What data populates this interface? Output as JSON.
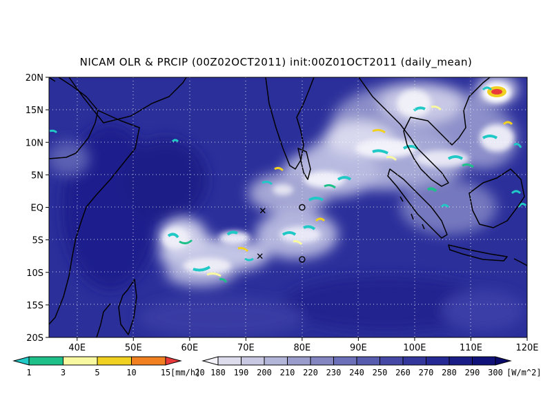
{
  "title": "NICAM OLR & PRCIP (00Z02OCT2011) init:00Z01OCT2011 (daily_mean)",
  "map": {
    "lat_ticks": [
      "20N",
      "15N",
      "10N",
      "5N",
      "EQ",
      "5S",
      "10S",
      "15S",
      "20S"
    ],
    "lon_ticks": [
      "40E",
      "50E",
      "60E",
      "70E",
      "80E",
      "90E",
      "100E",
      "110E",
      "120E"
    ],
    "lon_range": [
      35,
      120
    ],
    "lat_range": [
      -20,
      20
    ],
    "gridlines": true,
    "background_olr_color": "#2b2f9a",
    "markers": [
      {
        "symbol": "x",
        "lon": 73.0,
        "lat": -0.5
      },
      {
        "symbol": "x",
        "lon": 72.5,
        "lat": -7.5
      },
      {
        "symbol": "o",
        "lon": 80.0,
        "lat": 0.0
      },
      {
        "symbol": "o",
        "lon": 80.0,
        "lat": -8.0
      }
    ]
  },
  "precip_bar": {
    "labels": [
      "1",
      "3",
      "5",
      "10",
      "15",
      "20"
    ],
    "unit": "[mm/h]",
    "colors": [
      "#20c9c5",
      "#1ec08a",
      "#f8f8a0",
      "#f0d020",
      "#f08020",
      "#e83a3a"
    ]
  },
  "olr_bar": {
    "labels": [
      "180",
      "190",
      "200",
      "210",
      "220",
      "230",
      "240",
      "250",
      "260",
      "270",
      "280",
      "290",
      "300"
    ],
    "unit": "[W/m^2]",
    "colors": [
      "#f2f2f8",
      "#dcdcec",
      "#c8c8e2",
      "#b2b4d8",
      "#9a9ccc",
      "#8486c2",
      "#6c70b8",
      "#585cae",
      "#4548a4",
      "#33379c",
      "#252994",
      "#1a1d86",
      "#10127a",
      "#090a6a"
    ]
  }
}
